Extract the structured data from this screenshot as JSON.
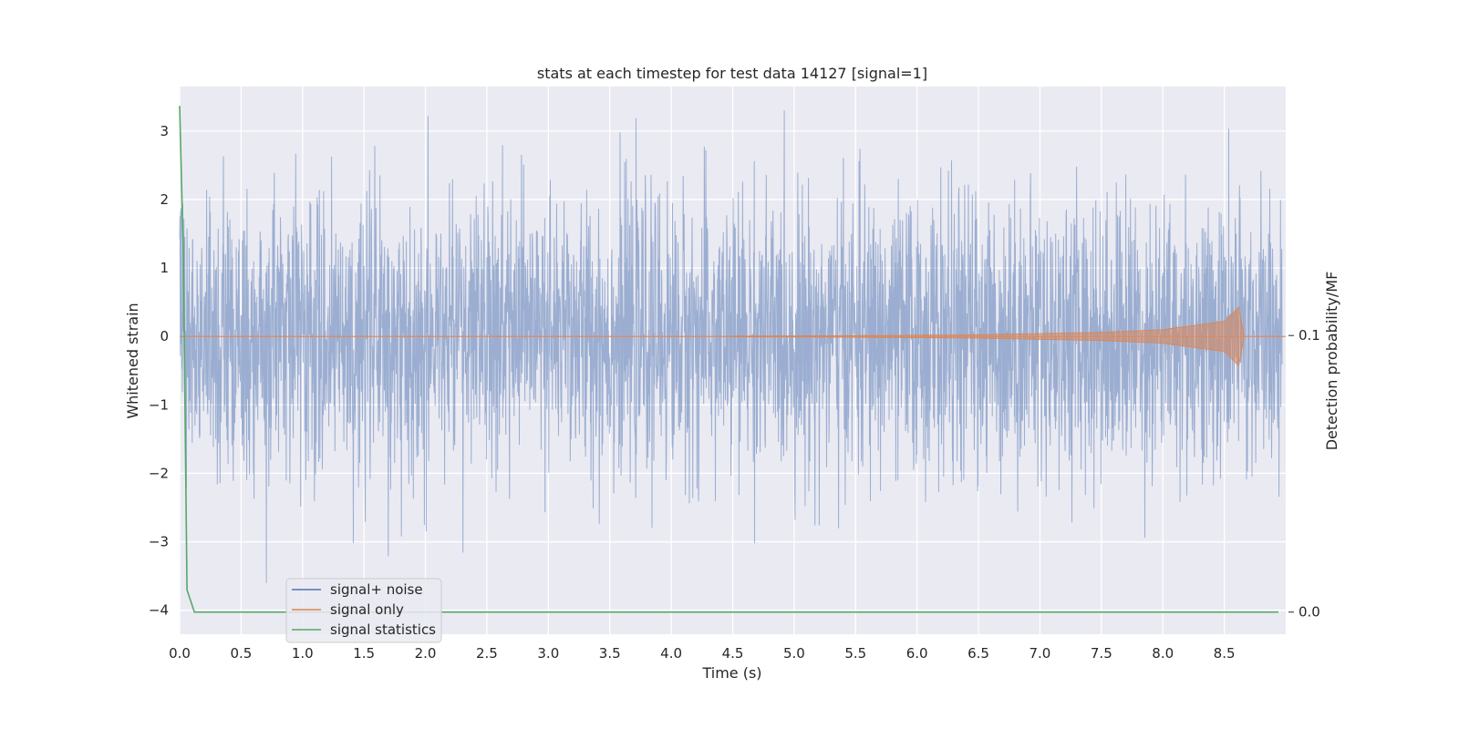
{
  "chart_data": {
    "type": "line",
    "title": "stats at each timestep for test data 14127 [signal=1]",
    "xlabel": "Time (s)",
    "ylabel": "Whitened strain",
    "y2label": "Detection probability/MF",
    "xlim": [
      0,
      9.0
    ],
    "ylim": [
      -4.35,
      3.65
    ],
    "y2lim": [
      -0.008,
      0.19
    ],
    "x_ticks": [
      "0.0",
      "0.5",
      "1.0",
      "1.5",
      "2.0",
      "2.5",
      "3.0",
      "3.5",
      "4.0",
      "4.5",
      "5.0",
      "5.5",
      "6.0",
      "6.5",
      "7.0",
      "7.5",
      "8.0",
      "8.5"
    ],
    "y_ticks": [
      "3",
      "2",
      "1",
      "0",
      "−1",
      "−2",
      "−3",
      "−4"
    ],
    "y2_ticks": [
      "0.1",
      "0.0"
    ],
    "grid": true,
    "legend_position": "lower-left",
    "colors": {
      "signal_noise": "#4c72b0",
      "signal_only": "#dd8452",
      "statistics": "#55a868",
      "background": "#eaeaf2",
      "grid": "#ffffff"
    },
    "series": [
      {
        "name": "signal+ noise",
        "description_values": "whitened strain noise roughly within [-3.6, 3.3], sampled 2048 Hz over 9 s",
        "y_range": [
          -3.6,
          3.3
        ]
      },
      {
        "name": "signal only",
        "envelope": {
          "x": [
            4.5,
            5.5,
            6.5,
            7.5,
            8.0,
            8.5,
            8.63,
            8.65
          ],
          "amplitude": [
            0.005,
            0.012,
            0.025,
            0.06,
            0.1,
            0.22,
            0.45,
            0.0
          ]
        }
      },
      {
        "name": "signal statistics",
        "axis": "right",
        "x": [
          0.0,
          0.03,
          0.06,
          0.12,
          8.94
        ],
        "values": [
          0.183,
          0.13,
          0.008,
          0.0,
          0.0
        ]
      }
    ]
  }
}
